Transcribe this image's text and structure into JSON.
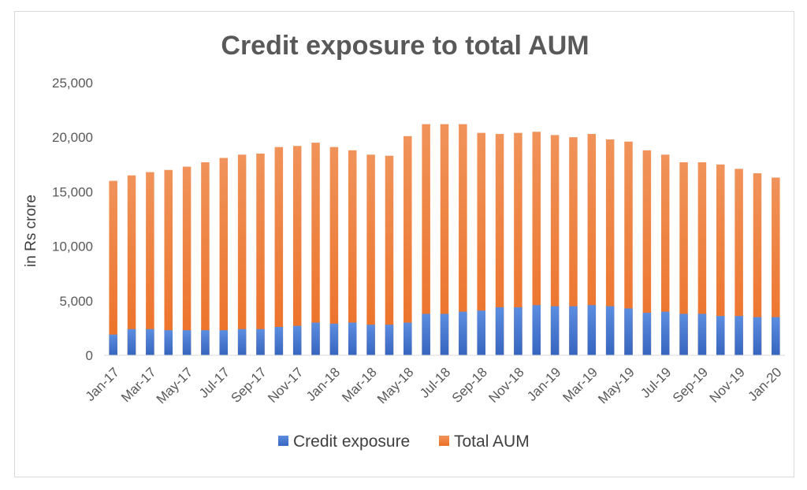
{
  "chart_data": {
    "type": "bar",
    "stacked": false,
    "overlapped": true,
    "title": "Credit exposure to total AUM",
    "xlabel": "",
    "ylabel": "in Rs crore",
    "ylim": [
      0,
      25000
    ],
    "yticks": [
      0,
      5000,
      10000,
      15000,
      20000,
      25000
    ],
    "ytick_labels": [
      "0",
      "5,000",
      "10,000",
      "15,000",
      "20,000",
      "25,000"
    ],
    "grid": false,
    "legend_position": "bottom",
    "categories": [
      "Jan-17",
      "Feb-17",
      "Mar-17",
      "Apr-17",
      "May-17",
      "Jun-17",
      "Jul-17",
      "Aug-17",
      "Sep-17",
      "Oct-17",
      "Nov-17",
      "Dec-17",
      "Jan-18",
      "Feb-18",
      "Mar-18",
      "Apr-18",
      "May-18",
      "Jun-18",
      "Jul-18",
      "Aug-18",
      "Sep-18",
      "Oct-18",
      "Nov-18",
      "Dec-18",
      "Jan-19",
      "Feb-19",
      "Mar-19",
      "Apr-19",
      "May-19",
      "Jun-19",
      "Jul-19",
      "Aug-19",
      "Sep-19",
      "Oct-19",
      "Nov-19",
      "Dec-19",
      "Jan-20"
    ],
    "visible_x_labels": [
      "Jan-17",
      "Mar-17",
      "May-17",
      "Jul-17",
      "Sep-17",
      "Nov-17",
      "Jan-18",
      "Mar-18",
      "May-18",
      "Jul-18",
      "Sep-18",
      "Nov-18",
      "Jan-19",
      "Mar-19",
      "May-19",
      "Jul-19",
      "Sep-19",
      "Nov-19",
      "Jan-20"
    ],
    "series": [
      {
        "name": "Credit exposure",
        "color": "#4472c4",
        "values": [
          1900,
          2400,
          2400,
          2300,
          2300,
          2300,
          2300,
          2400,
          2400,
          2600,
          2700,
          3000,
          2900,
          3000,
          2800,
          2800,
          3000,
          3800,
          3800,
          4000,
          4100,
          4400,
          4400,
          4600,
          4500,
          4500,
          4600,
          4500,
          4300,
          3900,
          4000,
          3800,
          3800,
          3600,
          3600,
          3500,
          3500
        ]
      },
      {
        "name": "Total AUM",
        "color": "#ed7d31",
        "values": [
          16000,
          16500,
          16800,
          17000,
          17300,
          17700,
          18100,
          18400,
          18500,
          19100,
          19200,
          19500,
          19100,
          18800,
          18400,
          18300,
          20100,
          21200,
          21200,
          21200,
          20400,
          20300,
          20400,
          20500,
          20200,
          20000,
          20300,
          19800,
          19600,
          18800,
          18400,
          17700,
          17700,
          17500,
          17100,
          16700,
          16300
        ]
      }
    ]
  }
}
